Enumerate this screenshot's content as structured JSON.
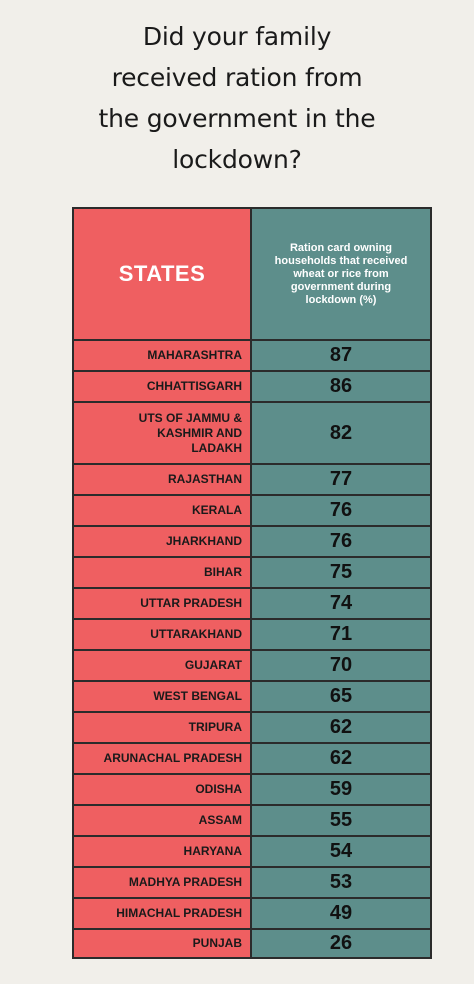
{
  "title_lines": [
    "Did your family",
    "received ration from",
    "the government in the",
    "lockdown?"
  ],
  "chart_data": {
    "type": "table",
    "columns": [
      "STATES",
      "Ration card owning households that received wheat or rice from government during lockdown (%)"
    ],
    "rows": [
      {
        "state": "MAHARASHTRA",
        "value": 87
      },
      {
        "state": "CHHATTISGARH",
        "value": 86
      },
      {
        "state": "UTS OF JAMMU & KASHMIR AND LADAKH",
        "value": 82
      },
      {
        "state": "RAJASTHAN",
        "value": 77
      },
      {
        "state": "KERALA",
        "value": 76
      },
      {
        "state": "JHARKHAND",
        "value": 76
      },
      {
        "state": "BIHAR",
        "value": 75
      },
      {
        "state": "UTTAR PRADESH",
        "value": 74
      },
      {
        "state": "UTTARAKHAND",
        "value": 71
      },
      {
        "state": "GUJARAT",
        "value": 70
      },
      {
        "state": "WEST BENGAL",
        "value": 65
      },
      {
        "state": "TRIPURA",
        "value": 62
      },
      {
        "state": "ARUNACHAL PRADESH",
        "value": 62
      },
      {
        "state": "ODISHA",
        "value": 59
      },
      {
        "state": "ASSAM",
        "value": 55
      },
      {
        "state": "HARYANA",
        "value": 54
      },
      {
        "state": "MADHYA PRADESH",
        "value": 53
      },
      {
        "state": "HIMACHAL PRADESH",
        "value": 49
      },
      {
        "state": "PUNJAB",
        "value": 26
      }
    ]
  },
  "colors": {
    "state_column": "#ef5f61",
    "value_column": "#5d8e8b",
    "background": "#f1efea"
  }
}
